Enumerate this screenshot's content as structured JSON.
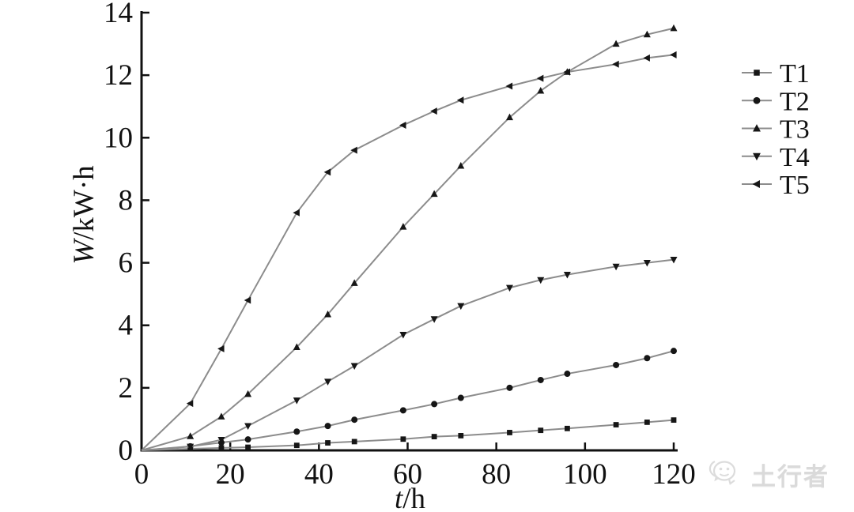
{
  "chart_data": {
    "type": "line",
    "xlabel_variable": "t",
    "xlabel_unit": "/h",
    "ylabel_variable": "W",
    "ylabel_unit": "/kW·h",
    "xlim": [
      0,
      120
    ],
    "ylim": [
      0,
      14
    ],
    "x_ticks": [
      0,
      20,
      40,
      60,
      80,
      100,
      120
    ],
    "y_ticks": [
      0,
      2,
      4,
      6,
      8,
      10,
      12,
      14
    ],
    "grid": false,
    "legend_position": "right-outside",
    "line_color": "#8c8c8c",
    "marker_color": "#161616",
    "axis_color": "#111111",
    "x": [
      11,
      18,
      24,
      35,
      42,
      48,
      59,
      66,
      72,
      83,
      90,
      96,
      107,
      114,
      120
    ],
    "series": [
      {
        "name": "T1",
        "marker": "square",
        "values": [
          0.05,
          0.08,
          0.1,
          0.16,
          0.24,
          0.28,
          0.36,
          0.44,
          0.47,
          0.57,
          0.64,
          0.7,
          0.82,
          0.9,
          0.97
        ]
      },
      {
        "name": "T2",
        "marker": "circle",
        "values": [
          0.13,
          0.25,
          0.35,
          0.6,
          0.78,
          0.98,
          1.28,
          1.48,
          1.68,
          2.0,
          2.25,
          2.45,
          2.73,
          2.95,
          3.18
        ]
      },
      {
        "name": "T3",
        "marker": "triangle-up",
        "values": [
          0.45,
          1.08,
          1.8,
          3.3,
          4.35,
          5.35,
          7.15,
          8.2,
          9.1,
          10.65,
          11.5,
          12.1,
          13.0,
          13.3,
          13.5
        ]
      },
      {
        "name": "T4",
        "marker": "triangle-down",
        "values": [
          0.12,
          0.34,
          0.78,
          1.6,
          2.2,
          2.7,
          3.7,
          4.2,
          4.62,
          5.2,
          5.45,
          5.62,
          5.88,
          6.0,
          6.1
        ]
      },
      {
        "name": "T5",
        "marker": "triangle-left",
        "values": [
          1.5,
          3.25,
          4.8,
          7.6,
          8.9,
          9.6,
          10.4,
          10.85,
          11.2,
          11.65,
          11.9,
          12.1,
          12.35,
          12.55,
          12.65
        ]
      }
    ]
  },
  "watermark": {
    "text": "土行者"
  }
}
